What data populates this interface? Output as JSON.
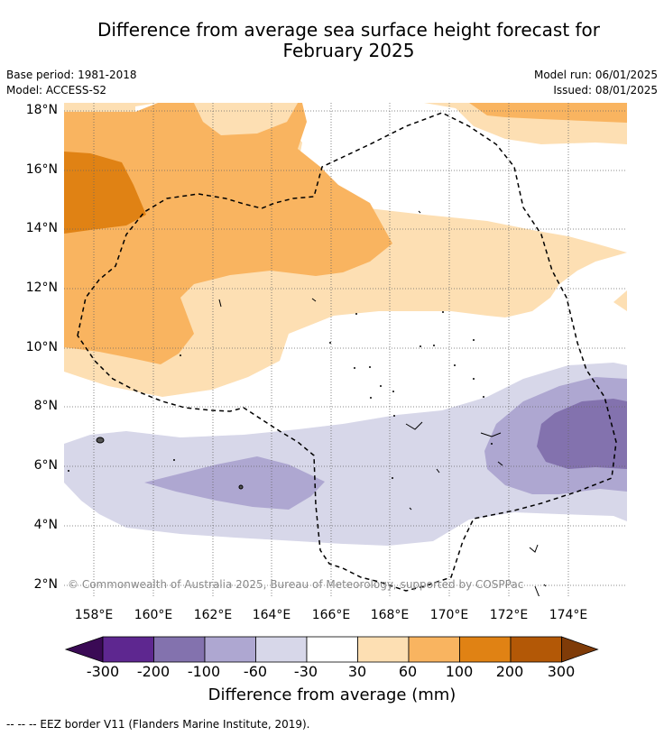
{
  "title_line1": "Difference from average sea surface height forecast for",
  "title_line2": "February 2025",
  "base_period": "Base period: 1981-2018",
  "model": "Model: ACCESS-S2",
  "model_run": "Model run: 06/01/2025",
  "issued": "Issued: 08/01/2025",
  "lat_labels": [
    "18°N",
    "16°N",
    "14°N",
    "12°N",
    "10°N",
    "8°N",
    "6°N",
    "4°N",
    "2°N"
  ],
  "lon_labels": [
    "158°E",
    "160°E",
    "162°E",
    "164°E",
    "166°E",
    "168°E",
    "170°E",
    "172°E",
    "174°E"
  ],
  "copyright": "© Commonwealth of Australia 2025, Bureau of Meteorology, supported by COSPPac",
  "colorbar": {
    "ticks": [
      "-300",
      "-200",
      "-100",
      "-60",
      "-30",
      "30",
      "60",
      "100",
      "200",
      "300"
    ],
    "colors": [
      "#3a0a55",
      "#5e2790",
      "#8372ae",
      "#aea7d1",
      "#d7d7e9",
      "#ffffff",
      "#fddfb3",
      "#f9b460",
      "#e08214",
      "#b35806",
      "#7f3b08"
    ],
    "label": "Difference from average (mm)"
  },
  "footnote": "--  --  -- EEZ border V11 (Flanders Marine Institute, 2019)."
}
